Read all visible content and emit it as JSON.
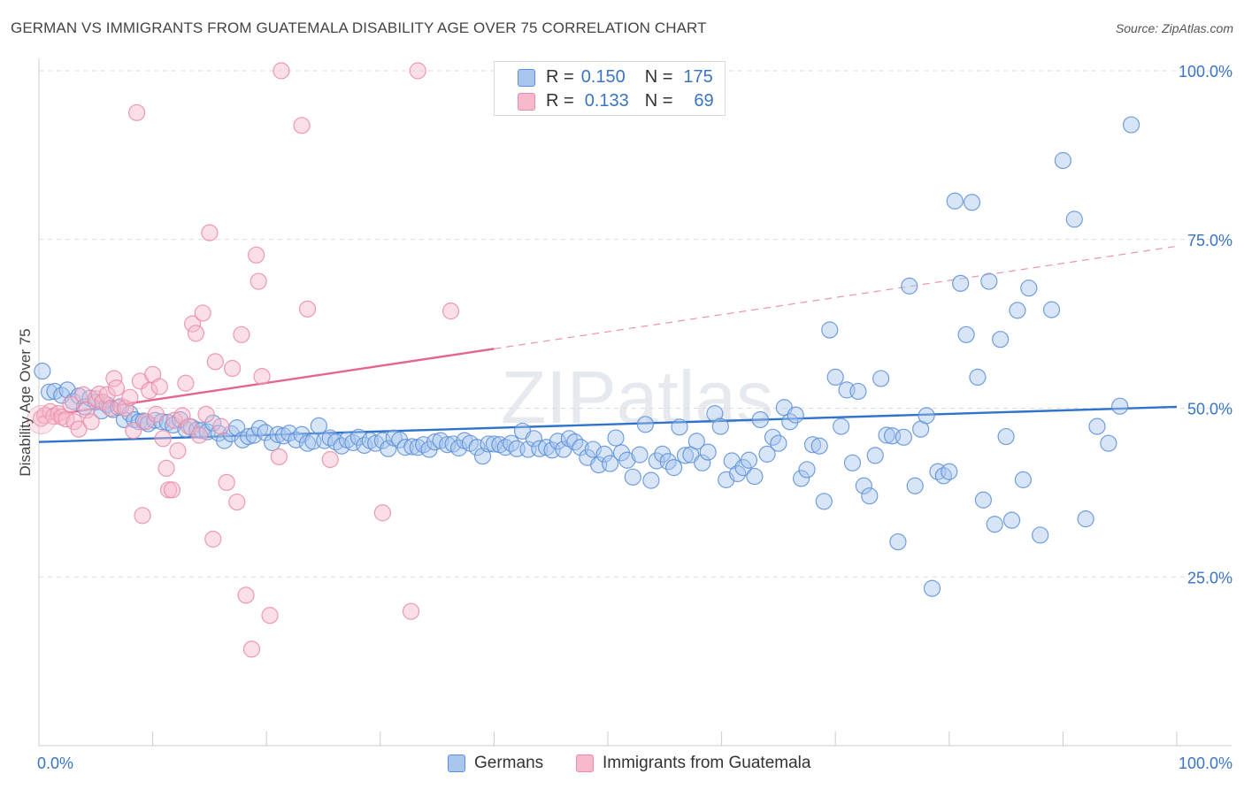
{
  "title": "GERMAN VS IMMIGRANTS FROM GUATEMALA DISABILITY AGE OVER 75 CORRELATION CHART",
  "source": "Source: ZipAtlas.com",
  "watermark": "ZIPatlas",
  "colors": {
    "blue_fill": "#a9c6ee",
    "blue_stroke": "#5b8fd6",
    "blue_line": "#2f73cc",
    "pink_fill": "#f7b9cb",
    "pink_stroke": "#e98aa6",
    "pink_line": "#e2668f",
    "tick_label": "#3a74c4"
  },
  "legend_top": {
    "rows": [
      {
        "r_label": "R =",
        "r_value": "0.150",
        "n_label": "N =",
        "n_value": "175"
      },
      {
        "r_label": "R =",
        "r_value": "0.133",
        "n_label": "N =",
        "n_value": "69"
      }
    ]
  },
  "legend_bottom": [
    "Germans",
    "Immigrants from Guatemala"
  ],
  "chart_data": {
    "type": "scatter",
    "title": "GERMAN VS IMMIGRANTS FROM GUATEMALA DISABILITY AGE OVER 75 CORRELATION CHART",
    "xlabel": "",
    "ylabel": "Disability Age Over 75",
    "xlim": [
      0,
      100
    ],
    "ylim": [
      0,
      100
    ],
    "x_tick_labels": [
      "0.0%",
      "100.0%"
    ],
    "y_tick_labels": [
      "25.0%",
      "50.0%",
      "75.0%",
      "100.0%"
    ],
    "y_ticks": [
      25,
      50,
      75,
      100
    ],
    "grid": "horizontal dashed",
    "legend_position": "top-center",
    "series": [
      {
        "name": "Germans",
        "r": 0.15,
        "n": 175,
        "trend": {
          "x": [
            0,
            100
          ],
          "y": [
            45.0,
            50.2
          ]
        },
        "points": [
          [
            0.3,
            55.5
          ],
          [
            0.9,
            52.4
          ],
          [
            1.4,
            52.5
          ],
          [
            2.0,
            51.9
          ],
          [
            2.5,
            52.7
          ],
          [
            3.0,
            51.0
          ],
          [
            3.5,
            51.8
          ],
          [
            4.0,
            50.2
          ],
          [
            4.5,
            51.5
          ],
          [
            5.0,
            50.9
          ],
          [
            5.5,
            49.6
          ],
          [
            6.0,
            50.5
          ],
          [
            6.5,
            49.8
          ],
          [
            7.0,
            50.1
          ],
          [
            7.5,
            48.3
          ],
          [
            8.0,
            49.2
          ],
          [
            8.4,
            48.3
          ],
          [
            8.8,
            48.0
          ],
          [
            9.2,
            48.1
          ],
          [
            9.6,
            47.7
          ],
          [
            10.2,
            48.2
          ],
          [
            10.8,
            48.0
          ],
          [
            11.3,
            47.9
          ],
          [
            11.8,
            47.5
          ],
          [
            12.4,
            48.3
          ],
          [
            12.9,
            46.9
          ],
          [
            13.4,
            47.2
          ],
          [
            13.9,
            46.8
          ],
          [
            14.3,
            46.7
          ],
          [
            14.8,
            46.5
          ],
          [
            15.3,
            47.8
          ],
          [
            15.8,
            46.3
          ],
          [
            16.3,
            45.2
          ],
          [
            16.9,
            46.2
          ],
          [
            17.4,
            47.1
          ],
          [
            17.9,
            45.3
          ],
          [
            18.4,
            45.8
          ],
          [
            18.9,
            46.0
          ],
          [
            19.4,
            47.0
          ],
          [
            19.9,
            46.4
          ],
          [
            20.5,
            44.9
          ],
          [
            21.0,
            46.1
          ],
          [
            21.5,
            45.9
          ],
          [
            22.0,
            46.3
          ],
          [
            22.6,
            45.3
          ],
          [
            23.1,
            46.1
          ],
          [
            23.6,
            44.8
          ],
          [
            24.1,
            45.1
          ],
          [
            24.6,
            47.4
          ],
          [
            25.1,
            45.2
          ],
          [
            25.6,
            45.6
          ],
          [
            26.1,
            45.0
          ],
          [
            26.6,
            44.4
          ],
          [
            27.1,
            45.3
          ],
          [
            27.6,
            44.9
          ],
          [
            28.1,
            45.7
          ],
          [
            28.6,
            44.5
          ],
          [
            29.1,
            45.2
          ],
          [
            29.6,
            44.8
          ],
          [
            30.2,
            45.2
          ],
          [
            30.7,
            44.0
          ],
          [
            31.2,
            45.6
          ],
          [
            31.7,
            45.3
          ],
          [
            32.2,
            44.2
          ],
          [
            32.8,
            44.3
          ],
          [
            33.3,
            44.2
          ],
          [
            33.8,
            44.6
          ],
          [
            34.3,
            43.9
          ],
          [
            34.8,
            45.0
          ],
          [
            35.3,
            45.2
          ],
          [
            35.9,
            44.6
          ],
          [
            36.4,
            44.7
          ],
          [
            36.9,
            44.1
          ],
          [
            37.4,
            45.2
          ],
          [
            37.9,
            44.8
          ],
          [
            38.5,
            44.2
          ],
          [
            39.0,
            42.9
          ],
          [
            39.5,
            44.7
          ],
          [
            40.0,
            44.7
          ],
          [
            40.5,
            44.6
          ],
          [
            41.0,
            44.2
          ],
          [
            41.5,
            44.8
          ],
          [
            42.0,
            44.0
          ],
          [
            42.5,
            46.6
          ],
          [
            43.0,
            43.9
          ],
          [
            43.5,
            45.5
          ],
          [
            44.0,
            44.0
          ],
          [
            44.6,
            44.2
          ],
          [
            45.1,
            43.8
          ],
          [
            45.6,
            45.1
          ],
          [
            46.1,
            43.9
          ],
          [
            46.6,
            45.5
          ],
          [
            47.1,
            45.0
          ],
          [
            47.6,
            44.2
          ],
          [
            48.2,
            42.7
          ],
          [
            48.7,
            43.9
          ],
          [
            49.2,
            41.6
          ],
          [
            49.7,
            43.2
          ],
          [
            50.2,
            41.8
          ],
          [
            50.7,
            45.6
          ],
          [
            51.2,
            43.4
          ],
          [
            51.7,
            42.3
          ],
          [
            52.2,
            39.8
          ],
          [
            52.8,
            43.1
          ],
          [
            53.3,
            47.6
          ],
          [
            53.8,
            39.3
          ],
          [
            54.3,
            42.2
          ],
          [
            54.8,
            43.2
          ],
          [
            55.3,
            42.1
          ],
          [
            55.8,
            41.2
          ],
          [
            56.3,
            47.2
          ],
          [
            56.8,
            43.0
          ],
          [
            57.3,
            43.1
          ],
          [
            57.8,
            45.1
          ],
          [
            58.3,
            41.9
          ],
          [
            58.8,
            43.5
          ],
          [
            59.4,
            49.2
          ],
          [
            59.9,
            47.3
          ],
          [
            60.4,
            39.4
          ],
          [
            60.9,
            42.2
          ],
          [
            61.4,
            40.3
          ],
          [
            61.9,
            41.2
          ],
          [
            62.4,
            42.3
          ],
          [
            62.9,
            39.9
          ],
          [
            63.4,
            48.3
          ],
          [
            64.0,
            43.2
          ],
          [
            64.5,
            45.7
          ],
          [
            65.0,
            44.8
          ],
          [
            65.5,
            50.1
          ],
          [
            66.0,
            48.0
          ],
          [
            66.5,
            49.0
          ],
          [
            67.0,
            39.6
          ],
          [
            67.5,
            40.9
          ],
          [
            68.0,
            44.6
          ],
          [
            68.6,
            44.4
          ],
          [
            69.0,
            36.2
          ],
          [
            69.5,
            61.6
          ],
          [
            70.0,
            54.6
          ],
          [
            70.5,
            47.3
          ],
          [
            71.0,
            52.7
          ],
          [
            71.5,
            41.9
          ],
          [
            72.0,
            52.5
          ],
          [
            72.5,
            38.5
          ],
          [
            73.0,
            37.0
          ],
          [
            73.5,
            43.0
          ],
          [
            74.0,
            54.4
          ],
          [
            74.5,
            46.0
          ],
          [
            75.0,
            45.9
          ],
          [
            75.5,
            30.2
          ],
          [
            76.0,
            45.7
          ],
          [
            76.5,
            68.1
          ],
          [
            77.0,
            38.5
          ],
          [
            77.5,
            46.9
          ],
          [
            78.0,
            48.9
          ],
          [
            78.5,
            23.3
          ],
          [
            79.0,
            40.6
          ],
          [
            79.5,
            40.0
          ],
          [
            80.0,
            40.6
          ],
          [
            80.5,
            80.7
          ],
          [
            81.0,
            68.5
          ],
          [
            81.5,
            60.9
          ],
          [
            82.0,
            80.5
          ],
          [
            82.5,
            54.6
          ],
          [
            83.0,
            36.4
          ],
          [
            83.5,
            68.8
          ],
          [
            84.0,
            32.8
          ],
          [
            84.5,
            60.2
          ],
          [
            85.0,
            45.8
          ],
          [
            85.5,
            33.4
          ],
          [
            86.0,
            64.5
          ],
          [
            86.5,
            39.4
          ],
          [
            87.0,
            67.8
          ],
          [
            88.0,
            31.2
          ],
          [
            89.0,
            64.6
          ],
          [
            90.0,
            86.7
          ],
          [
            91.0,
            78.0
          ],
          [
            92.0,
            33.6
          ],
          [
            93.0,
            47.3
          ],
          [
            94.0,
            44.8
          ],
          [
            95.0,
            50.3
          ],
          [
            96.0,
            92.0
          ]
        ]
      },
      {
        "name": "Immigrants from Guatemala",
        "r": 0.133,
        "n": 69,
        "trend": {
          "x": [
            0,
            40
          ],
          "y": [
            48.7,
            58.8
          ]
        },
        "trend_ext": {
          "x": [
            40,
            100
          ],
          "y": [
            58.8,
            74.0
          ]
        },
        "points": [
          [
            0.2,
            48.5
          ],
          [
            0.5,
            48.9
          ],
          [
            1.0,
            49.5
          ],
          [
            1.3,
            48.8
          ],
          [
            1.7,
            49.2
          ],
          [
            2.0,
            48.7
          ],
          [
            2.4,
            48.4
          ],
          [
            2.8,
            50.6
          ],
          [
            3.1,
            48.0
          ],
          [
            3.5,
            46.9
          ],
          [
            3.9,
            52.0
          ],
          [
            4.2,
            49.7
          ],
          [
            4.6,
            48.0
          ],
          [
            5.0,
            51.4
          ],
          [
            5.3,
            52.1
          ],
          [
            5.6,
            50.9
          ],
          [
            6.0,
            52.0
          ],
          [
            6.3,
            50.0
          ],
          [
            6.6,
            54.4
          ],
          [
            6.8,
            53.0
          ],
          [
            7.2,
            50.3
          ],
          [
            7.6,
            50.0
          ],
          [
            8.0,
            51.6
          ],
          [
            8.3,
            46.7
          ],
          [
            8.6,
            93.8
          ],
          [
            8.9,
            54.0
          ],
          [
            9.1,
            34.1
          ],
          [
            9.4,
            48.0
          ],
          [
            9.7,
            52.6
          ],
          [
            10.0,
            55.0
          ],
          [
            10.3,
            49.1
          ],
          [
            10.6,
            53.2
          ],
          [
            10.9,
            45.5
          ],
          [
            11.2,
            41.1
          ],
          [
            11.4,
            37.9
          ],
          [
            11.7,
            37.9
          ],
          [
            11.9,
            48.2
          ],
          [
            12.2,
            43.7
          ],
          [
            12.6,
            48.9
          ],
          [
            12.9,
            53.7
          ],
          [
            13.2,
            47.3
          ],
          [
            13.5,
            62.5
          ],
          [
            13.8,
            61.1
          ],
          [
            14.1,
            46.0
          ],
          [
            14.4,
            64.1
          ],
          [
            14.7,
            49.1
          ],
          [
            15.0,
            76.0
          ],
          [
            15.3,
            30.6
          ],
          [
            15.5,
            56.9
          ],
          [
            16.0,
            47.3
          ],
          [
            16.5,
            39.0
          ],
          [
            17.0,
            55.9
          ],
          [
            17.4,
            36.1
          ],
          [
            17.8,
            60.9
          ],
          [
            18.2,
            22.3
          ],
          [
            18.7,
            14.3
          ],
          [
            19.1,
            72.7
          ],
          [
            19.3,
            68.8
          ],
          [
            19.6,
            54.7
          ],
          [
            20.3,
            19.3
          ],
          [
            21.1,
            42.8
          ],
          [
            21.3,
            100.0
          ],
          [
            23.1,
            91.9
          ],
          [
            23.6,
            64.7
          ],
          [
            25.6,
            42.4
          ],
          [
            30.2,
            34.5
          ],
          [
            32.7,
            19.9
          ],
          [
            33.3,
            100.0
          ],
          [
            36.2,
            64.4
          ]
        ]
      }
    ]
  }
}
